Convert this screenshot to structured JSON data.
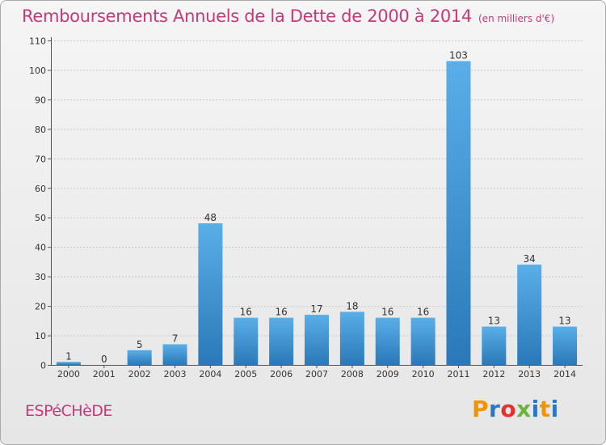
{
  "header": {
    "title": "Remboursements Annuels de la Dette de 2000 à 2014",
    "subtitle": "(en milliers d'€)"
  },
  "footer": {
    "place": "ESPéCHèDE",
    "logo_text": "Proxiti"
  },
  "colors": {
    "accent": "#c5397a",
    "bar_light": "#5aafe8",
    "bar_dark": "#2a78b8",
    "logo_letters": [
      "#f29400",
      "#2a78c5",
      "#e5322d",
      "#6cb33f",
      "#2a78c5",
      "#f29400",
      "#2a78c5"
    ]
  },
  "chart_data": {
    "type": "bar",
    "title": "Remboursements Annuels de la Dette de 2000 à 2014",
    "subtitle": "(en milliers d'€)",
    "categories": [
      "2000",
      "2001",
      "2002",
      "2003",
      "2004",
      "2005",
      "2006",
      "2007",
      "2008",
      "2009",
      "2010",
      "2011",
      "2012",
      "2013",
      "2014"
    ],
    "values": [
      1,
      0,
      5,
      7,
      48,
      16,
      16,
      17,
      18,
      16,
      16,
      103,
      13,
      34,
      13
    ],
    "ylim": [
      0,
      110
    ],
    "yticks": [
      0,
      10,
      20,
      30,
      40,
      50,
      60,
      70,
      80,
      90,
      100,
      110
    ],
    "grid": true,
    "legend": "none"
  }
}
